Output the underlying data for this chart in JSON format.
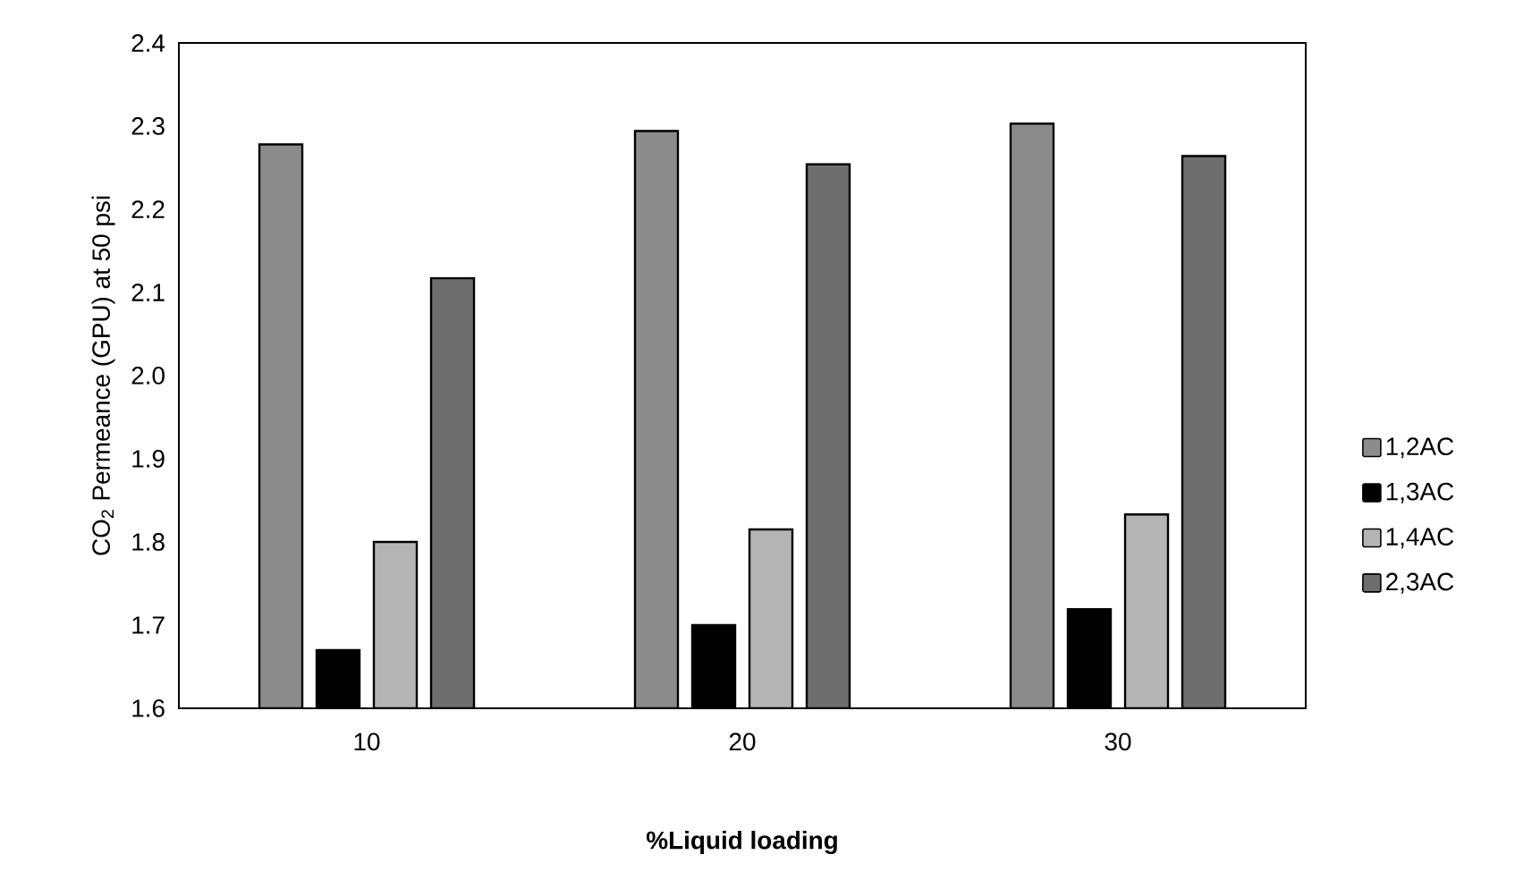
{
  "chart_data": {
    "type": "bar",
    "xlabel": "%Liquid loading",
    "ylabel": "CO$_{2}$ Permeance (GPU) at 50 psi",
    "categories": [
      "10",
      "20",
      "30"
    ],
    "series": [
      {
        "name": "1,2AC",
        "color": "#8c8c8c",
        "values": [
          2.278,
          2.294,
          2.303
        ]
      },
      {
        "name": "1,3AC",
        "color": "#000000",
        "values": [
          1.67,
          1.7,
          1.719
        ]
      },
      {
        "name": "1,4AC",
        "color": "#b4b4b4",
        "values": [
          1.8,
          1.815,
          1.833
        ]
      },
      {
        "name": "2,3AC",
        "color": "#6e6e6e",
        "values": [
          2.117,
          2.254,
          2.264
        ]
      }
    ],
    "ylim": [
      1.6,
      2.4
    ],
    "yticks": [
      1.6,
      1.7,
      1.8,
      1.9,
      {
        "value": 2.0,
        "label": "2.0"
      },
      2.1,
      2.2,
      2.3,
      2.4
    ],
    "legend": "right",
    "grid": false
  }
}
